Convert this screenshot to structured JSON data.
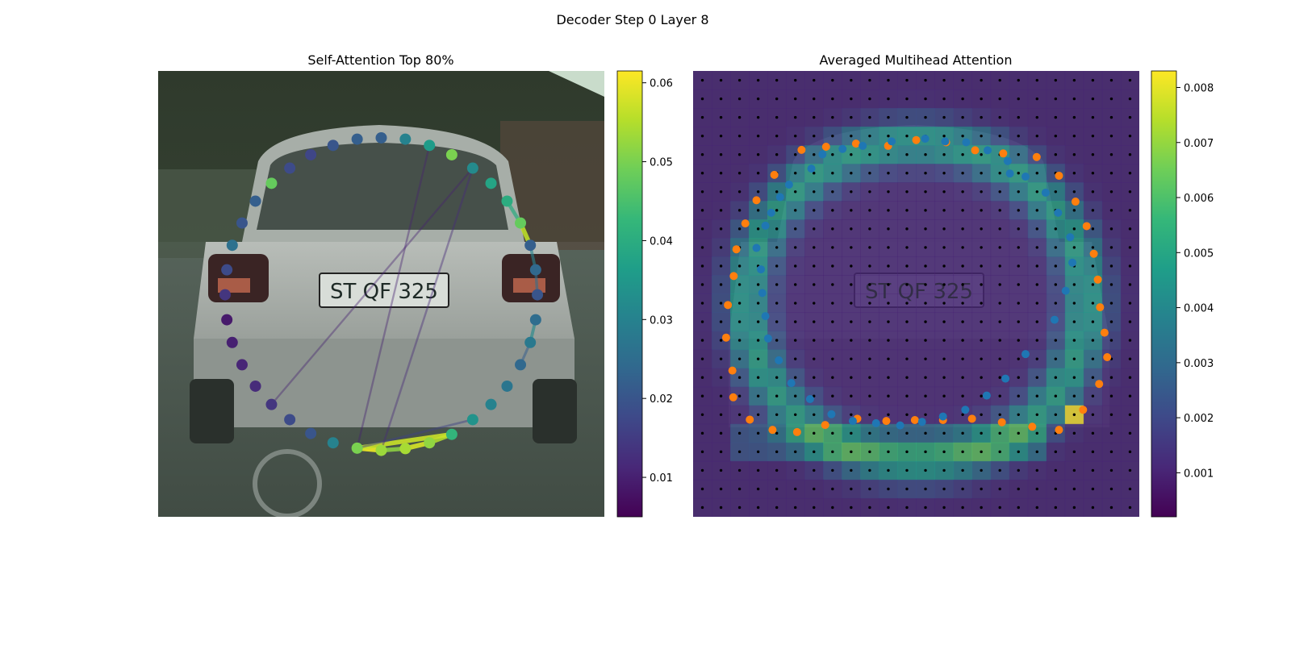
{
  "figure": {
    "suptitle": "Decoder Step 0 Layer 8"
  },
  "colors": {
    "viridis_stops": [
      "#440154",
      "#482878",
      "#3e4989",
      "#31688e",
      "#26828e",
      "#1f9e89",
      "#35b779",
      "#6ece58",
      "#b5de2b",
      "#fde725"
    ],
    "orange_points": "#ff7f0e",
    "blue_points": "#1f77b4",
    "grid_dots": "#000000"
  },
  "chart_data": [
    {
      "type": "scatter",
      "title": "Self-Attention Top 80%",
      "background": "photo of rear of silver hatchback car with license plate",
      "image_text": "ST QF 325",
      "colormap": "viridis",
      "colorbar": {
        "range": [
          0.005,
          0.0615
        ],
        "ticks": [
          0.01,
          0.02,
          0.03,
          0.04,
          0.05,
          0.06
        ],
        "tick_labels": [
          "0.01",
          "0.02",
          "0.03",
          "0.04",
          "0.05",
          "0.06"
        ]
      },
      "x_range": [
        0,
        1
      ],
      "y_range": [
        0,
        1
      ],
      "points": [
        {
          "x": 0.5,
          "y": 0.15,
          "v": 0.022
        },
        {
          "x": 0.554,
          "y": 0.153,
          "v": 0.03
        },
        {
          "x": 0.608,
          "y": 0.167,
          "v": 0.036
        },
        {
          "x": 0.658,
          "y": 0.188,
          "v": 0.05
        },
        {
          "x": 0.705,
          "y": 0.218,
          "v": 0.032
        },
        {
          "x": 0.746,
          "y": 0.252,
          "v": 0.038
        },
        {
          "x": 0.782,
          "y": 0.292,
          "v": 0.04
        },
        {
          "x": 0.812,
          "y": 0.341,
          "v": 0.048
        },
        {
          "x": 0.834,
          "y": 0.391,
          "v": 0.022
        },
        {
          "x": 0.846,
          "y": 0.446,
          "v": 0.024
        },
        {
          "x": 0.85,
          "y": 0.502,
          "v": 0.02
        },
        {
          "x": 0.846,
          "y": 0.558,
          "v": 0.025
        },
        {
          "x": 0.834,
          "y": 0.609,
          "v": 0.028
        },
        {
          "x": 0.812,
          "y": 0.659,
          "v": 0.024
        },
        {
          "x": 0.782,
          "y": 0.707,
          "v": 0.027
        },
        {
          "x": 0.746,
          "y": 0.748,
          "v": 0.03
        },
        {
          "x": 0.705,
          "y": 0.782,
          "v": 0.034
        },
        {
          "x": 0.658,
          "y": 0.815,
          "v": 0.042
        },
        {
          "x": 0.608,
          "y": 0.834,
          "v": 0.052
        },
        {
          "x": 0.554,
          "y": 0.847,
          "v": 0.054
        },
        {
          "x": 0.5,
          "y": 0.851,
          "v": 0.053
        },
        {
          "x": 0.446,
          "y": 0.846,
          "v": 0.05
        },
        {
          "x": 0.392,
          "y": 0.834,
          "v": 0.03
        },
        {
          "x": 0.342,
          "y": 0.813,
          "v": 0.02
        },
        {
          "x": 0.295,
          "y": 0.782,
          "v": 0.018
        },
        {
          "x": 0.254,
          "y": 0.748,
          "v": 0.014
        },
        {
          "x": 0.218,
          "y": 0.707,
          "v": 0.012
        },
        {
          "x": 0.188,
          "y": 0.659,
          "v": 0.011
        },
        {
          "x": 0.166,
          "y": 0.609,
          "v": 0.01
        },
        {
          "x": 0.154,
          "y": 0.558,
          "v": 0.009
        },
        {
          "x": 0.15,
          "y": 0.502,
          "v": 0.014
        },
        {
          "x": 0.154,
          "y": 0.446,
          "v": 0.018
        },
        {
          "x": 0.166,
          "y": 0.391,
          "v": 0.026
        },
        {
          "x": 0.188,
          "y": 0.341,
          "v": 0.02
        },
        {
          "x": 0.218,
          "y": 0.292,
          "v": 0.022
        },
        {
          "x": 0.254,
          "y": 0.252,
          "v": 0.048
        },
        {
          "x": 0.295,
          "y": 0.218,
          "v": 0.018
        },
        {
          "x": 0.342,
          "y": 0.188,
          "v": 0.017
        },
        {
          "x": 0.392,
          "y": 0.167,
          "v": 0.02
        },
        {
          "x": 0.446,
          "y": 0.153,
          "v": 0.022
        }
      ],
      "links": [
        {
          "from": 20,
          "to": 21,
          "v": 0.06
        },
        {
          "from": 20,
          "to": 19,
          "v": 0.052
        },
        {
          "from": 19,
          "to": 18,
          "v": 0.058
        },
        {
          "from": 18,
          "to": 17,
          "v": 0.055
        },
        {
          "from": 17,
          "to": 21,
          "v": 0.057
        },
        {
          "from": 16,
          "to": 21,
          "v": 0.016
        },
        {
          "from": 7,
          "to": 8,
          "v": 0.056
        },
        {
          "from": 8,
          "to": 9,
          "v": 0.03
        },
        {
          "from": 9,
          "to": 10,
          "v": 0.026
        },
        {
          "from": 11,
          "to": 12,
          "v": 0.032
        },
        {
          "from": 12,
          "to": 13,
          "v": 0.022
        },
        {
          "from": 6,
          "to": 7,
          "v": 0.04
        },
        {
          "from": 4,
          "to": 20,
          "v": 0.012
        },
        {
          "from": 4,
          "to": 25,
          "v": 0.01
        },
        {
          "from": 2,
          "to": 21,
          "v": 0.01
        }
      ]
    },
    {
      "type": "heatmap",
      "title": "Averaged Multihead Attention",
      "background": "same car photo, dimmed under attention heatmap overlay",
      "image_text": "ST QF 325",
      "colormap": "viridis",
      "grid": true,
      "grid_size": [
        24,
        24
      ],
      "colorbar": {
        "range": [
          0.0002,
          0.0083
        ],
        "ticks": [
          0.001,
          0.002,
          0.003,
          0.004,
          0.005,
          0.006,
          0.007,
          0.008
        ],
        "tick_labels": [
          "0.001",
          "0.002",
          "0.003",
          "0.004",
          "0.005",
          "0.006",
          "0.007",
          "0.008"
        ]
      },
      "attention_ring": {
        "cx": 0.5,
        "cy": 0.52,
        "rx": 0.38,
        "ry": 0.36,
        "peak": 0.005,
        "base": 0.001
      },
      "hot_cell": {
        "col": 20,
        "row": 18,
        "v": 0.0083
      },
      "x_range": [
        0,
        1
      ],
      "y_range": [
        0,
        1
      ],
      "series": [
        {
          "name": "",
          "color": "#ff7f0e",
          "points": [
            {
              "x": 0.5,
              "y": 0.155
            },
            {
              "x": 0.567,
              "y": 0.16
            },
            {
              "x": 0.632,
              "y": 0.178
            },
            {
              "x": 0.695,
              "y": 0.185
            },
            {
              "x": 0.77,
              "y": 0.193
            },
            {
              "x": 0.82,
              "y": 0.235
            },
            {
              "x": 0.857,
              "y": 0.293
            },
            {
              "x": 0.882,
              "y": 0.348
            },
            {
              "x": 0.898,
              "y": 0.41
            },
            {
              "x": 0.907,
              "y": 0.468
            },
            {
              "x": 0.912,
              "y": 0.53
            },
            {
              "x": 0.922,
              "y": 0.587
            },
            {
              "x": 0.928,
              "y": 0.642
            },
            {
              "x": 0.91,
              "y": 0.702
            },
            {
              "x": 0.874,
              "y": 0.76
            },
            {
              "x": 0.82,
              "y": 0.805
            },
            {
              "x": 0.76,
              "y": 0.798
            },
            {
              "x": 0.692,
              "y": 0.788
            },
            {
              "x": 0.625,
              "y": 0.78
            },
            {
              "x": 0.56,
              "y": 0.783
            },
            {
              "x": 0.497,
              "y": 0.783
            },
            {
              "x": 0.433,
              "y": 0.785
            },
            {
              "x": 0.368,
              "y": 0.78
            },
            {
              "x": 0.296,
              "y": 0.794
            },
            {
              "x": 0.233,
              "y": 0.81
            },
            {
              "x": 0.178,
              "y": 0.805
            },
            {
              "x": 0.127,
              "y": 0.782
            },
            {
              "x": 0.09,
              "y": 0.732
            },
            {
              "x": 0.088,
              "y": 0.672
            },
            {
              "x": 0.074,
              "y": 0.598
            },
            {
              "x": 0.078,
              "y": 0.525
            },
            {
              "x": 0.091,
              "y": 0.46
            },
            {
              "x": 0.097,
              "y": 0.4
            },
            {
              "x": 0.117,
              "y": 0.342
            },
            {
              "x": 0.142,
              "y": 0.29
            },
            {
              "x": 0.182,
              "y": 0.233
            },
            {
              "x": 0.243,
              "y": 0.177
            },
            {
              "x": 0.298,
              "y": 0.17
            },
            {
              "x": 0.365,
              "y": 0.163
            },
            {
              "x": 0.437,
              "y": 0.168
            }
          ]
        },
        {
          "name": "",
          "color": "#1f77b4",
          "points": [
            {
              "x": 0.52,
              "y": 0.152
            },
            {
              "x": 0.445,
              "y": 0.158
            },
            {
              "x": 0.38,
              "y": 0.168
            },
            {
              "x": 0.335,
              "y": 0.175
            },
            {
              "x": 0.29,
              "y": 0.187
            },
            {
              "x": 0.265,
              "y": 0.219
            },
            {
              "x": 0.215,
              "y": 0.255
            },
            {
              "x": 0.195,
              "y": 0.283
            },
            {
              "x": 0.175,
              "y": 0.318
            },
            {
              "x": 0.162,
              "y": 0.347
            },
            {
              "x": 0.142,
              "y": 0.397
            },
            {
              "x": 0.152,
              "y": 0.445
            },
            {
              "x": 0.155,
              "y": 0.498
            },
            {
              "x": 0.162,
              "y": 0.55
            },
            {
              "x": 0.168,
              "y": 0.6
            },
            {
              "x": 0.192,
              "y": 0.649
            },
            {
              "x": 0.22,
              "y": 0.7
            },
            {
              "x": 0.262,
              "y": 0.736
            },
            {
              "x": 0.31,
              "y": 0.77
            },
            {
              "x": 0.358,
              "y": 0.785
            },
            {
              "x": 0.41,
              "y": 0.79
            },
            {
              "x": 0.464,
              "y": 0.795
            },
            {
              "x": 0.513,
              "y": 0.787
            },
            {
              "x": 0.56,
              "y": 0.775
            },
            {
              "x": 0.61,
              "y": 0.76
            },
            {
              "x": 0.658,
              "y": 0.728
            },
            {
              "x": 0.7,
              "y": 0.69
            },
            {
              "x": 0.745,
              "y": 0.635
            },
            {
              "x": 0.81,
              "y": 0.558
            },
            {
              "x": 0.835,
              "y": 0.493
            },
            {
              "x": 0.85,
              "y": 0.43
            },
            {
              "x": 0.845,
              "y": 0.373
            },
            {
              "x": 0.818,
              "y": 0.318
            },
            {
              "x": 0.79,
              "y": 0.273
            },
            {
              "x": 0.745,
              "y": 0.237
            },
            {
              "x": 0.705,
              "y": 0.202
            },
            {
              "x": 0.66,
              "y": 0.178
            },
            {
              "x": 0.612,
              "y": 0.16
            },
            {
              "x": 0.565,
              "y": 0.158
            },
            {
              "x": 0.71,
              "y": 0.23
            }
          ]
        }
      ]
    }
  ]
}
